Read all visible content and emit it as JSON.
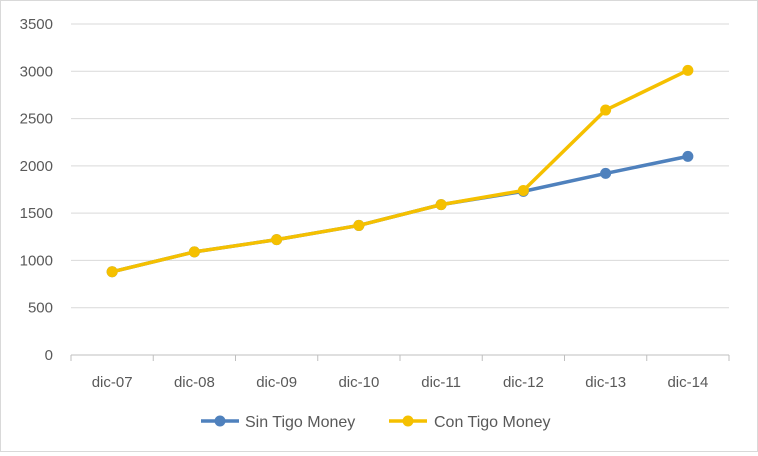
{
  "chart_data": {
    "type": "line",
    "title": "",
    "xlabel": "",
    "ylabel": "",
    "categories": [
      "dic-07",
      "dic-08",
      "dic-09",
      "dic-10",
      "dic-11",
      "dic-12",
      "dic-13",
      "dic-14"
    ],
    "ylim": [
      0,
      3500
    ],
    "yticks": [
      "0",
      "500",
      "1000",
      "1500",
      "2000",
      "2500",
      "3000",
      "3500"
    ],
    "grid": "horizontal",
    "legend_position": "bottom",
    "series": [
      {
        "name": "Sin Tigo Money",
        "color": "#4F81BD",
        "values": [
          880,
          1090,
          1220,
          1370,
          1590,
          1730,
          1920,
          2100
        ]
      },
      {
        "name": "Con Tigo Money",
        "color": "#F5C000",
        "values": [
          880,
          1090,
          1220,
          1370,
          1590,
          1740,
          2590,
          3010
        ]
      }
    ]
  }
}
